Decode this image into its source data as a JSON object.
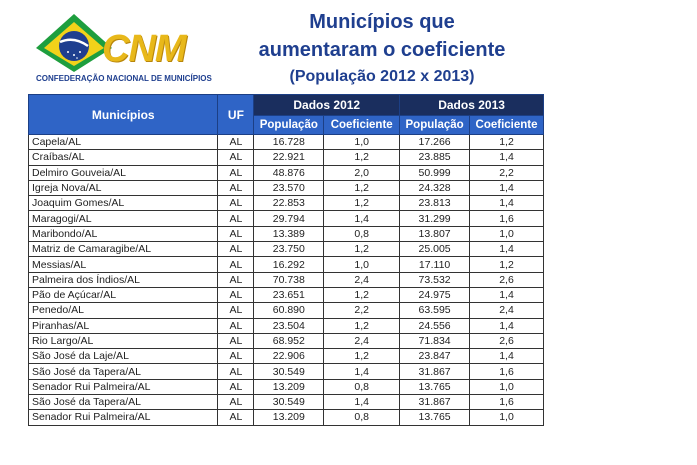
{
  "logo": {
    "name": "CNM",
    "subtitle": "CONFEDERAÇÃO NACIONAL DE MUNICÍPIOS"
  },
  "title": {
    "line1": "Municípios que",
    "line2": "aumentaram o coeficiente",
    "line3": "(População 2012 x 2013)"
  },
  "table": {
    "headers": {
      "municipios": "Municípios",
      "uf": "UF",
      "dados2012": "Dados 2012",
      "dados2013": "Dados 2013",
      "populacao": "População",
      "coeficiente": "Coeficiente"
    },
    "rows": [
      [
        "Capela/AL",
        "AL",
        "16.728",
        "1,0",
        "17.266",
        "1,2"
      ],
      [
        "Craíbas/AL",
        "AL",
        "22.921",
        "1,2",
        "23.885",
        "1,4"
      ],
      [
        "Delmiro Gouveia/AL",
        "AL",
        "48.876",
        "2,0",
        "50.999",
        "2,2"
      ],
      [
        "Igreja Nova/AL",
        "AL",
        "23.570",
        "1,2",
        "24.328",
        "1,4"
      ],
      [
        "Joaquim Gomes/AL",
        "AL",
        "22.853",
        "1,2",
        "23.813",
        "1,4"
      ],
      [
        "Maragogi/AL",
        "AL",
        "29.794",
        "1,4",
        "31.299",
        "1,6"
      ],
      [
        "Maribondo/AL",
        "AL",
        "13.389",
        "0,8",
        "13.807",
        "1,0"
      ],
      [
        "Matriz de Camaragibe/AL",
        "AL",
        "23.750",
        "1,2",
        "25.005",
        "1,4"
      ],
      [
        "Messias/AL",
        "AL",
        "16.292",
        "1,0",
        "17.110",
        "1,2"
      ],
      [
        "Palmeira dos Índios/AL",
        "AL",
        "70.738",
        "2,4",
        "73.532",
        "2,6"
      ],
      [
        "Pão de Açúcar/AL",
        "AL",
        "23.651",
        "1,2",
        "24.975",
        "1,4"
      ],
      [
        "Penedo/AL",
        "AL",
        "60.890",
        "2,2",
        "63.595",
        "2,4"
      ],
      [
        "Piranhas/AL",
        "AL",
        "23.504",
        "1,2",
        "24.556",
        "1,4"
      ],
      [
        "Rio Largo/AL",
        "AL",
        "68.952",
        "2,4",
        "71.834",
        "2,6"
      ],
      [
        "São José da Laje/AL",
        "AL",
        "22.906",
        "1,2",
        "23.847",
        "1,4"
      ],
      [
        "São José da Tapera/AL",
        "AL",
        "30.549",
        "1,4",
        "31.867",
        "1,6"
      ],
      [
        "Senador Rui Palmeira/AL",
        "AL",
        "13.209",
        "0,8",
        "13.765",
        "1,0"
      ],
      [
        "São José da Tapera/AL",
        "AL",
        "30.549",
        "1,4",
        "31.867",
        "1,6"
      ],
      [
        "Senador Rui Palmeira/AL",
        "AL",
        "13.209",
        "0,8",
        "13.765",
        "1,0"
      ]
    ]
  }
}
